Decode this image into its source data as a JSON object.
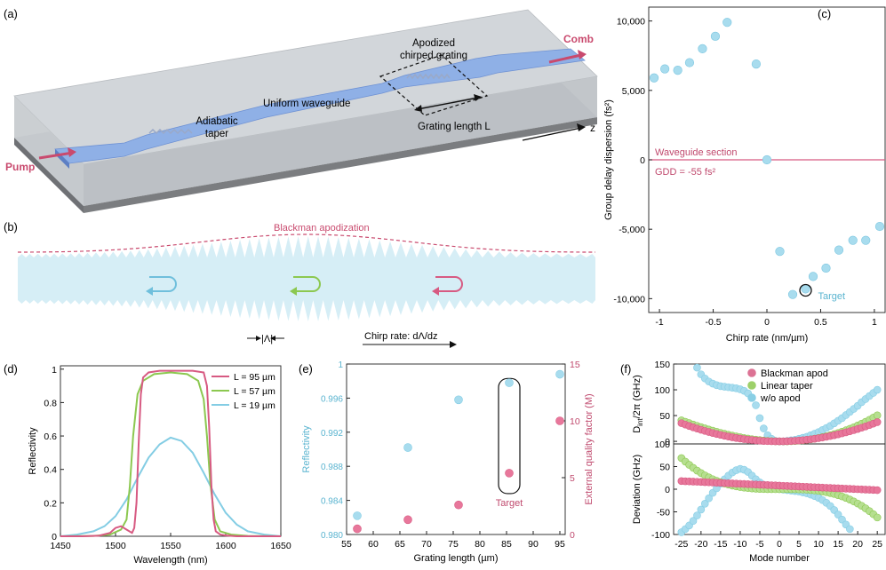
{
  "colors": {
    "pink": "#d75a82",
    "green": "#8cc850",
    "blue": "#84cde4",
    "blue_fill": "#a8dcee",
    "pink_fill": "#e8779b",
    "green_fill": "#b6df90",
    "text_pink": "#c04a6e",
    "text_blue": "#5ab4d0"
  },
  "panel_a": {
    "label": "(a)",
    "pump": "Pump",
    "comb": "Comb",
    "grating": "Apodized\nchirped grating",
    "uniform": "Uniform waveguide",
    "taper": "Adiabatic\ntaper",
    "length": "Grating length L",
    "axis": "z"
  },
  "panel_b": {
    "label": "(b)",
    "apod": "Blackman apodization",
    "lambda": "|Λ|",
    "chirp": "Chirp rate: dΛ/dz"
  },
  "chart_data": [
    {
      "id": "c",
      "type": "scatter",
      "label": "(c)",
      "xlabel": "Chirp rate (nm/µm)",
      "ylabel": "Group delay dispersion (fs²)",
      "xlim": [
        -1.1,
        1.1
      ],
      "ylim": [
        -11000,
        11000
      ],
      "xticks": [
        -1,
        -0.5,
        0,
        0.5,
        1
      ],
      "xtick_labels": [
        "-1",
        "-0.5",
        "0",
        "0.5",
        "1"
      ],
      "yticks": [
        10000,
        5000,
        0,
        -5000,
        -10000
      ],
      "ytick_labels": [
        "10,000",
        "5,000",
        "0",
        "-5,000",
        "-10,000"
      ],
      "points": [
        [
          -1.05,
          5900
        ],
        [
          -0.95,
          6550
        ],
        [
          -0.83,
          6450
        ],
        [
          -0.72,
          7000
        ],
        [
          -0.6,
          8000
        ],
        [
          -0.48,
          8900
        ],
        [
          -0.37,
          9900
        ],
        [
          -0.1,
          6900
        ],
        [
          0,
          0
        ],
        [
          0.12,
          -6600
        ],
        [
          0.24,
          -9700
        ],
        [
          0.36,
          -9300
        ],
        [
          0.43,
          -8400
        ],
        [
          0.55,
          -7800
        ],
        [
          0.67,
          -6500
        ],
        [
          0.8,
          -5800
        ],
        [
          0.92,
          -5800
        ],
        [
          1.05,
          -4800
        ]
      ],
      "target": [
        0.36,
        -9400
      ],
      "hline": 0,
      "annotations": {
        "section": "Waveguide section",
        "gdd": "GDD = -55 fs²",
        "target": "Target"
      }
    },
    {
      "id": "d",
      "type": "line",
      "label": "(d)",
      "xlabel": "Wavelength (nm)",
      "ylabel": "Reflectivity",
      "xlim": [
        1450,
        1650
      ],
      "ylim": [
        0,
        1.02
      ],
      "xticks": [
        1450,
        1500,
        1550,
        1600,
        1650
      ],
      "xtick_labels": [
        "1450",
        "1500",
        "1550",
        "1600",
        "1650"
      ],
      "yticks": [
        0,
        0.2,
        0.4,
        0.6,
        0.8,
        1
      ],
      "ytick_labels": [
        "0",
        "0.2",
        "0.4",
        "0.6",
        "0.8",
        "1"
      ],
      "series": [
        {
          "name": "L = 95 µm",
          "color": "#d75a82",
          "x": [
            1450,
            1470,
            1485,
            1495,
            1500,
            1505,
            1510,
            1515,
            1517,
            1519,
            1521,
            1523,
            1525,
            1530,
            1540,
            1550,
            1560,
            1570,
            1580,
            1583,
            1585,
            1587,
            1589,
            1591,
            1595,
            1600,
            1610,
            1630,
            1650
          ],
          "y": [
            0,
            0,
            0.003,
            0.02,
            0.05,
            0.06,
            0.04,
            0.02,
            0.05,
            0.2,
            0.55,
            0.85,
            0.95,
            0.98,
            0.99,
            0.99,
            0.99,
            0.99,
            0.98,
            0.9,
            0.65,
            0.3,
            0.1,
            0.03,
            0.01,
            0.005,
            0,
            0,
            0
          ]
        },
        {
          "name": "L = 57 µm",
          "color": "#8cc850",
          "x": [
            1450,
            1480,
            1495,
            1505,
            1510,
            1513,
            1516,
            1520,
            1525,
            1535,
            1550,
            1565,
            1575,
            1580,
            1583,
            1586,
            1590,
            1595,
            1605,
            1620,
            1650
          ],
          "y": [
            0,
            0.002,
            0.01,
            0.04,
            0.1,
            0.3,
            0.6,
            0.85,
            0.93,
            0.97,
            0.98,
            0.97,
            0.93,
            0.82,
            0.6,
            0.32,
            0.1,
            0.03,
            0.01,
            0.002,
            0
          ]
        },
        {
          "name": "L = 19 µm",
          "color": "#84cde4",
          "x": [
            1450,
            1465,
            1480,
            1490,
            1500,
            1510,
            1520,
            1530,
            1540,
            1550,
            1560,
            1570,
            1580,
            1590,
            1600,
            1610,
            1620,
            1635,
            1650
          ],
          "y": [
            0,
            0.01,
            0.03,
            0.06,
            0.12,
            0.22,
            0.35,
            0.47,
            0.55,
            0.59,
            0.57,
            0.5,
            0.38,
            0.25,
            0.14,
            0.07,
            0.03,
            0.01,
            0
          ]
        }
      ]
    },
    {
      "id": "e",
      "type": "scatter",
      "label": "(e)",
      "xlabel": "Grating length (µm)",
      "ylabel": "Reflectivity",
      "ylabel_right": "External quality factor (M)",
      "xlim": [
        55,
        96
      ],
      "ylim": [
        0.98,
        1
      ],
      "ylim_right": [
        0,
        15
      ],
      "xticks": [
        55,
        60,
        65,
        70,
        75,
        80,
        85,
        90,
        95
      ],
      "xtick_labels": [
        "55",
        "60",
        "65",
        "70",
        "75",
        "80",
        "85",
        "90",
        "95"
      ],
      "yticks": [
        0.98,
        0.984,
        0.988,
        0.992,
        0.996,
        1
      ],
      "ytick_labels": [
        "0.980",
        "0.984",
        "0.988",
        "0.992",
        "0.996",
        "1"
      ],
      "yticks_right": [
        0,
        5,
        10,
        15
      ],
      "ytick_labels_right": [
        "0",
        "5",
        "10",
        "15"
      ],
      "series": [
        {
          "name": "Reflectivity",
          "axis": "left",
          "color": "#84cde4",
          "x": [
            57,
            66.5,
            76,
            85.5,
            95
          ],
          "y": [
            0.9822,
            0.9902,
            0.9958,
            0.9978,
            0.9988
          ]
        },
        {
          "name": "External quality factor",
          "axis": "right",
          "color": "#d75a82",
          "x": [
            57,
            66.5,
            76,
            85.5,
            95
          ],
          "y": [
            0.5,
            1.3,
            2.6,
            5.4,
            10.0
          ]
        }
      ],
      "target_x": 85.5,
      "annotation": "Target"
    },
    {
      "id": "f",
      "type": "scatter",
      "label": "(f)",
      "xlabel": "Mode number",
      "xlim": [
        -27,
        27
      ],
      "xticks": [
        -25,
        -20,
        -15,
        -10,
        -5,
        0,
        5,
        10,
        15,
        20,
        25
      ],
      "xtick_labels": [
        "-25",
        "-20",
        "-15",
        "-10",
        "-5",
        "0",
        "5",
        "10",
        "15",
        "20",
        "25"
      ],
      "legend": [
        {
          "name": "Blackman apod",
          "color": "#d75a82"
        },
        {
          "name": "Linear taper",
          "color": "#8cc850"
        },
        {
          "name": "w/o apod",
          "color": "#84cde4"
        }
      ],
      "top": {
        "ylabel_main": "D",
        "ylabel_sub": "int",
        "ylabel_rest": "/2π (GHz)",
        "ylim": [
          -5,
          150
        ],
        "yticks": [
          0,
          50,
          100,
          150
        ],
        "ytick_labels": [
          "0",
          "50",
          "100",
          "150"
        ],
        "series": {
          "blackman": {
            "n": [
              -25,
              25
            ],
            "a": 0.058,
            "b": 0.04
          },
          "linear": {
            "n": [
              -25,
              25
            ],
            "a": 0.073,
            "b": -0.12
          },
          "wo": {
            "n": [
              -21,
              25
            ],
            "pts": [
              [
                -21,
                143
              ],
              [
                -20,
                130
              ],
              [
                -19,
                122
              ],
              [
                -18,
                116
              ],
              [
                -17,
                112
              ],
              [
                -16,
                109
              ],
              [
                -15,
                107
              ],
              [
                -14,
                106
              ],
              [
                -13,
                105
              ],
              [
                -12,
                104
              ],
              [
                -11,
                103
              ],
              [
                -10,
                101
              ],
              [
                -9,
                98
              ],
              [
                -8,
                93
              ],
              [
                -7,
                85
              ],
              [
                -6,
                70
              ],
              [
                -5,
                45
              ],
              [
                -4,
                25
              ],
              [
                -3,
                12
              ],
              [
                -2,
                5
              ],
              [
                -1,
                1
              ],
              [
                0,
                0
              ],
              [
                1,
                0
              ],
              [
                2,
                1
              ],
              [
                3,
                2
              ],
              [
                4,
                3
              ],
              [
                5,
                5
              ],
              [
                6,
                7
              ],
              [
                7,
                9
              ],
              [
                8,
                12
              ],
              [
                9,
                15
              ],
              [
                10,
                18
              ],
              [
                11,
                22
              ],
              [
                12,
                26
              ],
              [
                13,
                30
              ],
              [
                14,
                35
              ],
              [
                15,
                40
              ],
              [
                16,
                45
              ],
              [
                17,
                51
              ],
              [
                18,
                57
              ],
              [
                19,
                63
              ],
              [
                20,
                69
              ],
              [
                21,
                76
              ],
              [
                22,
                82
              ],
              [
                23,
                88
              ],
              [
                24,
                94
              ],
              [
                25,
                100
              ]
            ]
          }
        }
      },
      "bottom": {
        "ylabel": "Deviation (GHz)",
        "ylim": [
          -100,
          100
        ],
        "yticks": [
          100,
          50,
          0,
          -50,
          -100
        ],
        "ytick_labels": [
          "100",
          "50",
          "0",
          "-50",
          "-100"
        ],
        "series": {
          "blackman": {
            "n": [
              -25,
              25
            ],
            "type": "linear",
            "a": 10,
            "b": -10
          },
          "linear": {
            "n": [
              -25,
              25
            ],
            "type": "cubic"
          },
          "wo": {
            "pts": [
              [
                -25,
                -95
              ],
              [
                -24,
                -88
              ],
              [
                -23,
                -80
              ],
              [
                -22,
                -70
              ],
              [
                -21,
                -58
              ],
              [
                -20,
                -45
              ],
              [
                -19,
                -32
              ],
              [
                -18,
                -20
              ],
              [
                -17,
                -8
              ],
              [
                -16,
                2
              ],
              [
                -15,
                12
              ],
              [
                -14,
                22
              ],
              [
                -13,
                30
              ],
              [
                -12,
                37
              ],
              [
                -11,
                42
              ],
              [
                -10,
                45
              ],
              [
                -9,
                43
              ],
              [
                -8,
                38
              ],
              [
                -7,
                30
              ],
              [
                -6,
                22
              ],
              [
                -5,
                15
              ],
              [
                -4,
                10
              ],
              [
                -3,
                6
              ],
              [
                -2,
                3
              ],
              [
                -1,
                1
              ],
              [
                0,
                0
              ],
              [
                1,
                -1
              ],
              [
                2,
                -2
              ],
              [
                3,
                -3
              ],
              [
                4,
                -4
              ],
              [
                5,
                -5
              ],
              [
                6,
                -7
              ],
              [
                7,
                -9
              ],
              [
                8,
                -12
              ],
              [
                9,
                -15
              ],
              [
                10,
                -19
              ],
              [
                11,
                -24
              ],
              [
                12,
                -30
              ],
              [
                13,
                -37
              ],
              [
                14,
                -46
              ],
              [
                15,
                -56
              ],
              [
                16,
                -67
              ],
              [
                17,
                -78
              ],
              [
                18,
                -88
              ]
            ]
          }
        }
      }
    }
  ]
}
